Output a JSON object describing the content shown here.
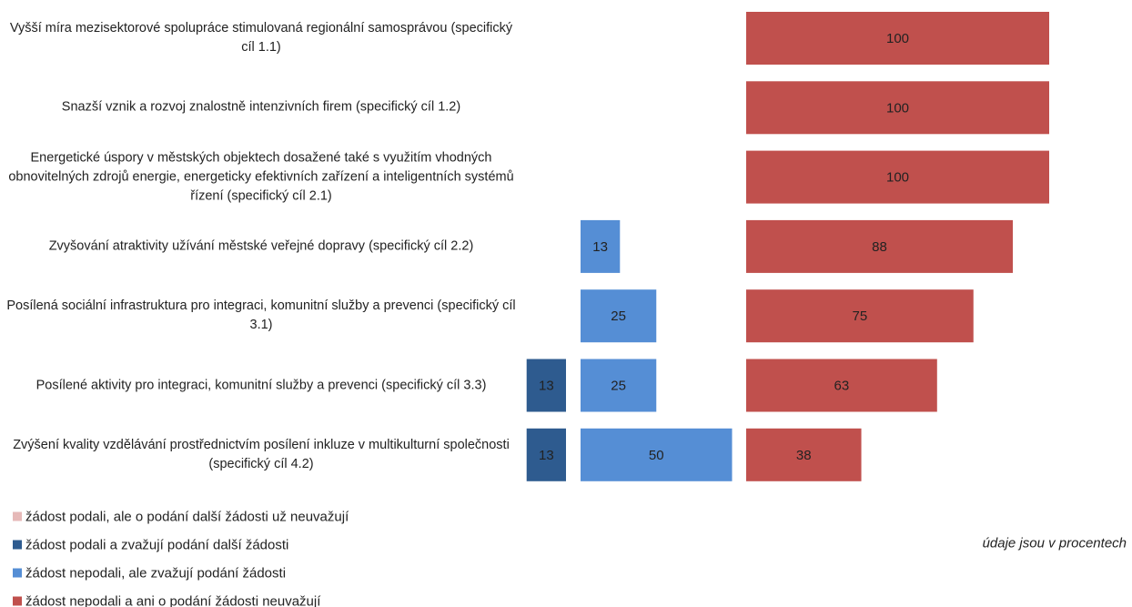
{
  "chart_data": {
    "type": "bar",
    "categories": [
      "Vyšší míra mezisektorové spolupráce stimulovaná regionální samosprávou (specifický cíl 1.1)",
      "Snazší vznik a rozvoj znalostně intenzivních firem (specifický cíl 1.2)",
      "Energetické úspory v městských objektech dosažené také s využitím vhodných obnovitelných zdrojů energie, energeticky efektivních zařízení a inteligentních systémů řízení (specifický cíl 2.1)",
      "Zvyšování atraktivity užívání městské veřejné dopravy (specifický cíl 2.2)",
      "Posílená sociální infrastruktura pro integraci, komunitní služby a prevenci (specifický cíl 3.1)",
      "Posílené aktivity pro integraci, komunitní služby a prevenci (specifický cíl 3.3)",
      "Zvýšení kvality vzdělávání prostřednictvím posílení inkluze v multikulturní společnosti (specifický cíl 4.2)"
    ],
    "series": [
      {
        "name": "žádost podali, ale o podání další žádosti už neuvažují",
        "color": "#e6b9b8",
        "values": [
          null,
          null,
          null,
          null,
          null,
          null,
          null
        ]
      },
      {
        "name": "žádost podali a zvažují podání další žádosti",
        "color": "#2e5b8f",
        "values": [
          null,
          null,
          null,
          null,
          null,
          13,
          13
        ]
      },
      {
        "name": "žádost nepodali, ale zvažují podání žádosti",
        "color": "#558ed5",
        "values": [
          null,
          null,
          null,
          13,
          25,
          25,
          50
        ]
      },
      {
        "name": "žádost nepodali a ani o podání žádosti neuvažují",
        "color": "#c0504d",
        "values": [
          100,
          100,
          100,
          88,
          75,
          63,
          38
        ]
      }
    ],
    "note": "údaje jsou v procentech"
  }
}
